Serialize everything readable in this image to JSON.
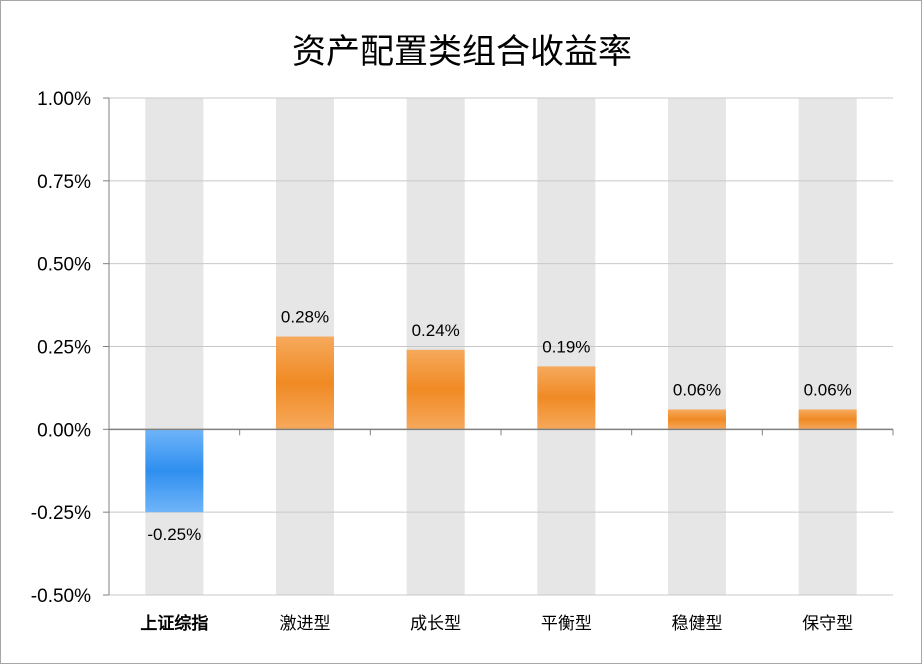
{
  "chart_data": {
    "type": "bar",
    "title": "资产配置类组合收益率",
    "categories": [
      "上证综指",
      "激进型",
      "成长型",
      "平衡型",
      "稳健型",
      "保守型"
    ],
    "values": [
      -0.25,
      0.28,
      0.24,
      0.19,
      0.06,
      0.06
    ],
    "data_labels": [
      "-0.25%",
      "0.28%",
      "0.24%",
      "0.19%",
      "0.06%",
      "0.06%"
    ],
    "y_ticks": [
      1.0,
      0.75,
      0.5,
      0.25,
      0.0,
      -0.25,
      -0.5
    ],
    "y_tick_labels": [
      "1.00%",
      "0.75%",
      "0.50%",
      "0.25%",
      "0.00%",
      "-0.25%",
      "-0.50%"
    ],
    "ylim": [
      -0.5,
      1.0
    ],
    "grid": true,
    "background_bars": true,
    "colors": {
      "index_bar": "#2f8ff0",
      "portfolio_bar": "#f08a24",
      "background_bar": "#e6e6e6",
      "grid": "#c8c8c8"
    }
  }
}
